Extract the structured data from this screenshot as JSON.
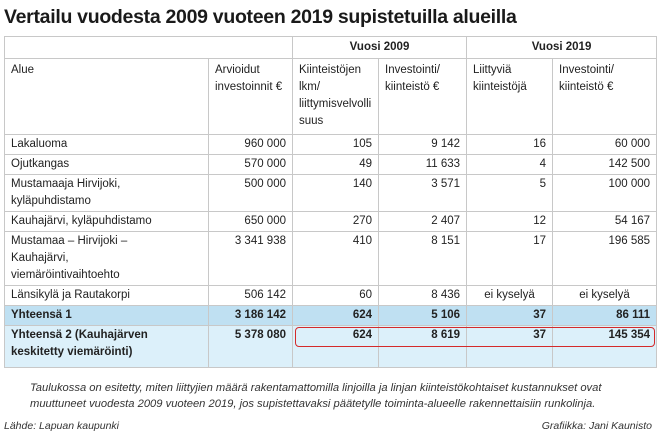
{
  "title": "Vertailu vuodesta 2009 vuoteen 2019 supistetuilla alueilla",
  "table": {
    "group_headers": [
      "Vuosi 2009",
      "Vuosi 2019"
    ],
    "columns": [
      "Alue",
      "Arvioidut investoinnit €",
      "Kiinteistöjen lkm/ liittymisvelvollisuus",
      "Investointi/ kiinteistö €",
      "Liittyviä kiinteistöjä",
      "Investointi/ kiinteistö €"
    ],
    "rows": [
      [
        "Lakaluoma",
        "960 000",
        "105",
        "9 142",
        "16",
        "60 000"
      ],
      [
        "Ojutkangas",
        "570 000",
        "49",
        "11 633",
        "4",
        "142 500"
      ],
      [
        "Mustamaaja Hirvijoki, kyläpuhdistamo",
        "500 000",
        "140",
        "3 571",
        "5",
        "100 000"
      ],
      [
        "Kauhajärvi, kyläpuhdistamo",
        "650 000",
        "270",
        "2 407",
        "12",
        "54 167"
      ],
      [
        "Mustamaa – Hirvijoki – Kauhajärvi, viemäröintivaihtoehto",
        "3 341 938",
        "410",
        "8 151",
        "17",
        "196 585"
      ],
      [
        "Länsikylä ja Rautakorpi",
        "506 142",
        "60",
        "8 436",
        "ei kyselyä",
        "ei kyselyä"
      ],
      [
        "Yhteensä 1",
        "3 186 142",
        "624",
        "5 106",
        "37",
        "86 111"
      ],
      [
        "Yhteensä 2 (Kauhajärven keskitetty viemäröinti)",
        "5 378 080",
        "624",
        "8 619",
        "37",
        "145 354"
      ]
    ]
  },
  "note": "Taulukossa on esitetty, miten liittyjien määrä rakentamattomilla linjoilla ja linjan kiinteistökohtaiset kustannukset ovat muuttuneet vuodesta 2009 vuoteen 2019, jos supistettavaksi päätetylle toiminta-alueelle rakennettaisiin runkolinja.",
  "source": "Lähde: Lapuan kaupunki",
  "credit": "Grafiikka: Jani Kaunisto"
}
